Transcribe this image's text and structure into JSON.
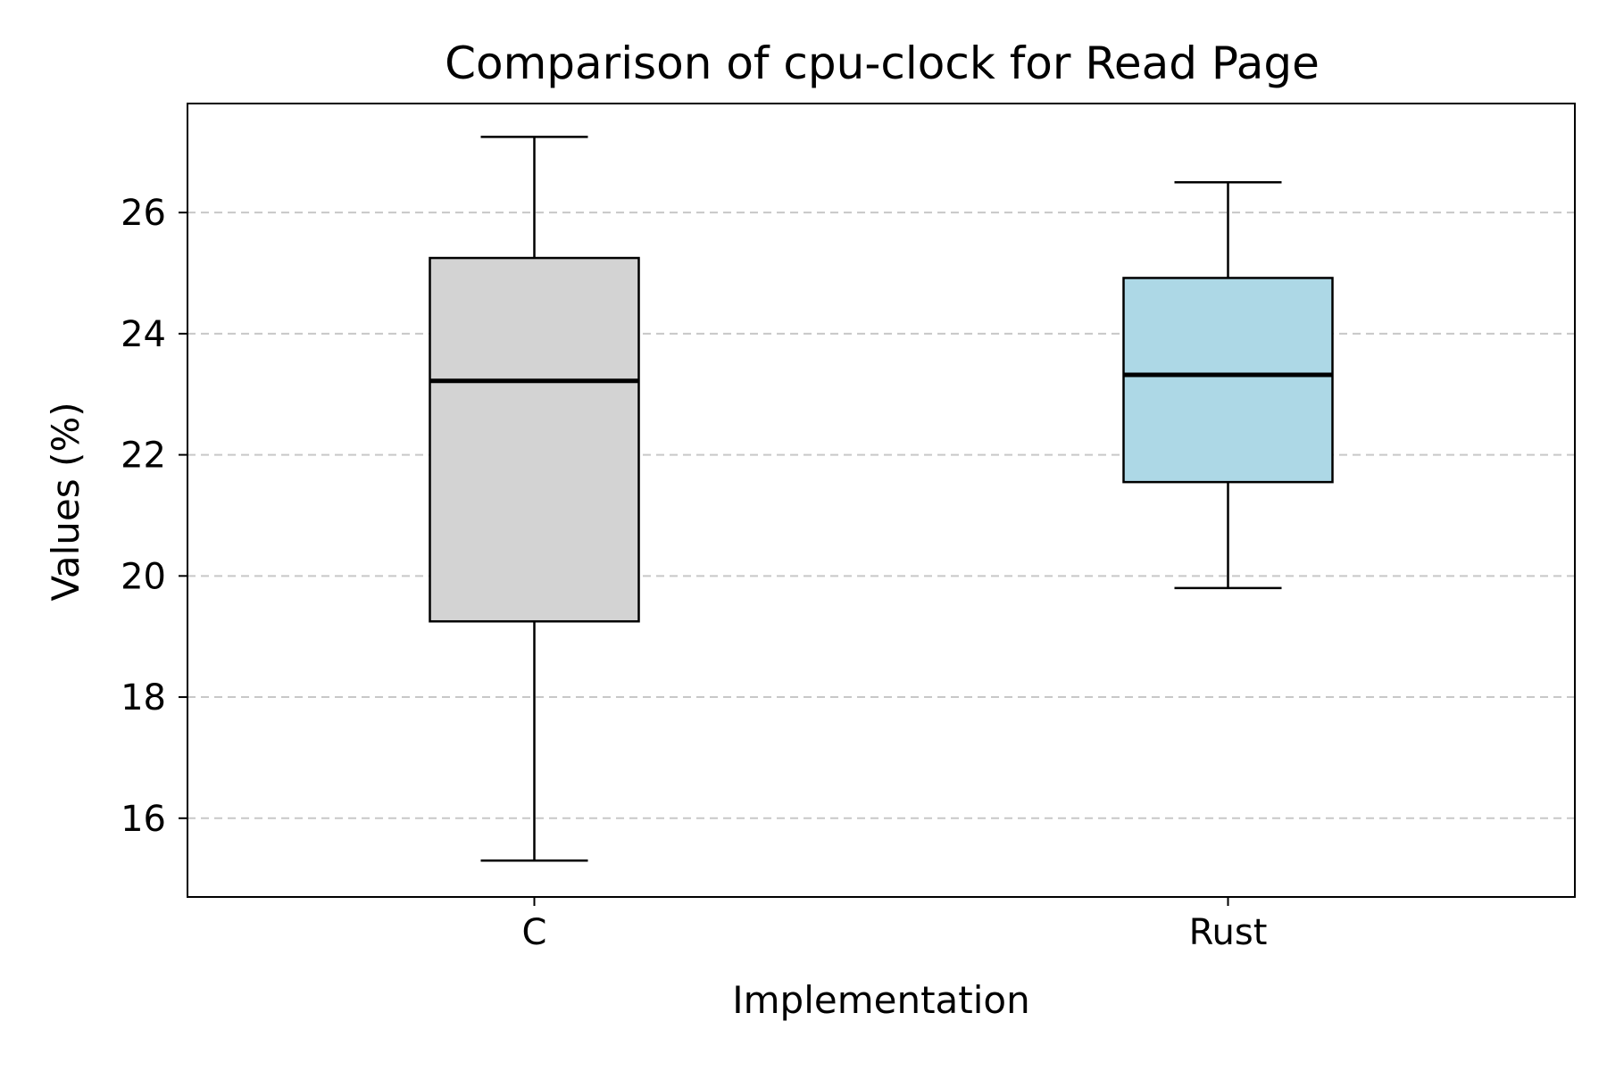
{
  "chart_data": {
    "type": "box",
    "title": "Comparison of cpu-clock for Read Page",
    "xlabel": "Implementation",
    "ylabel": "Values (%)",
    "ylim": [
      14.7,
      27.8
    ],
    "yticks": [
      16,
      18,
      20,
      22,
      24,
      26
    ],
    "grid": "y-dashed",
    "categories": [
      "C",
      "Rust"
    ],
    "boxes": [
      {
        "category": "C",
        "whisker_low": 15.3,
        "q1": 19.25,
        "median": 23.22,
        "q3": 25.25,
        "whisker_high": 27.25,
        "color": "#d3d3d3"
      },
      {
        "category": "Rust",
        "whisker_low": 19.8,
        "q1": 21.55,
        "median": 23.32,
        "q3": 24.92,
        "whisker_high": 26.5,
        "color": "#add8e6"
      }
    ]
  }
}
